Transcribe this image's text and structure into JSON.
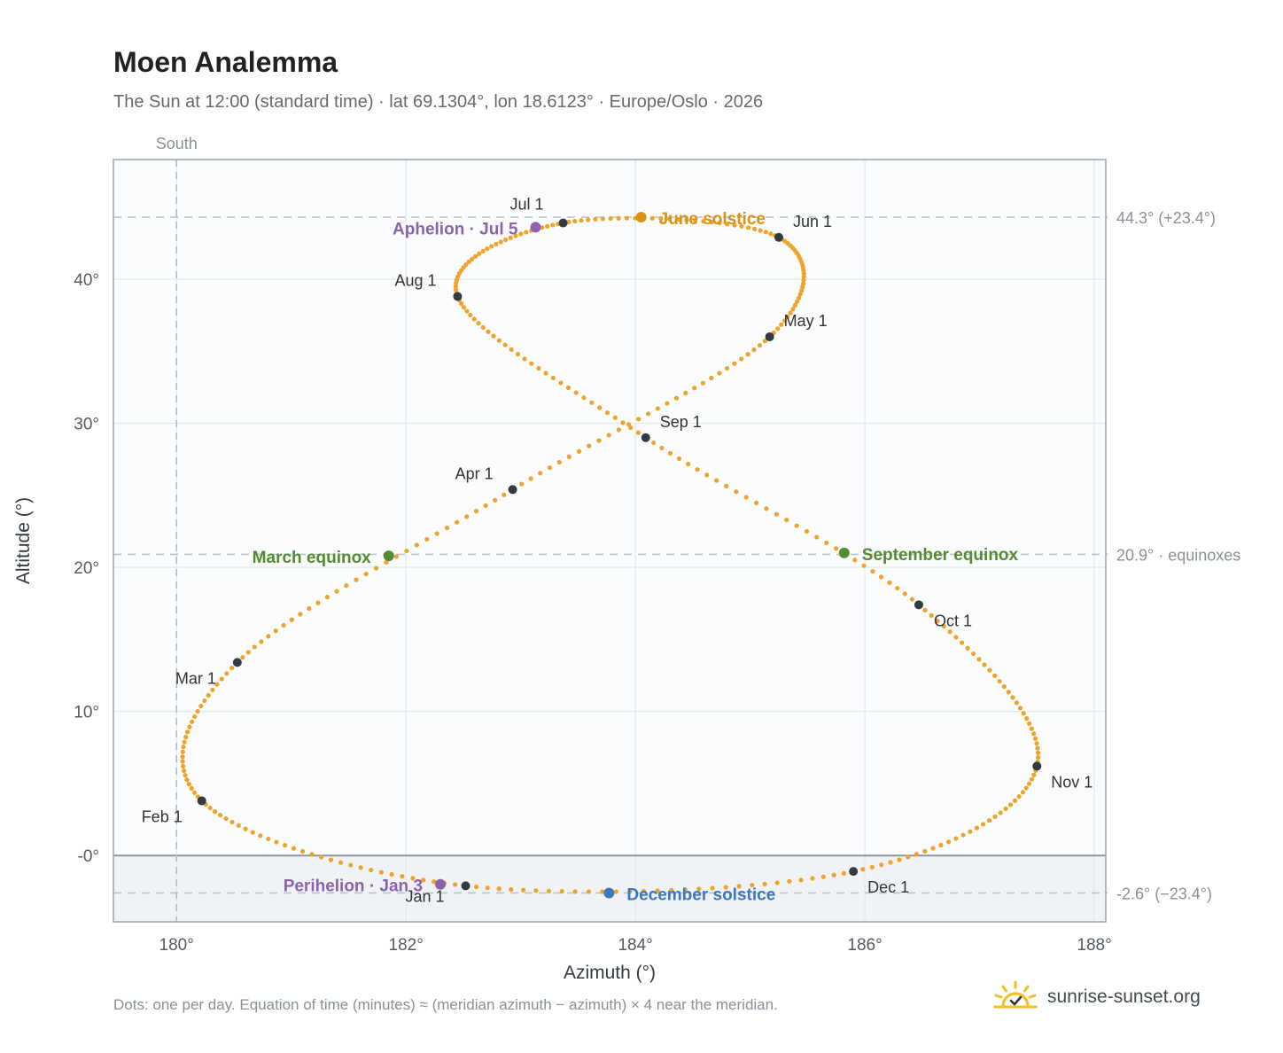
{
  "header": {
    "title": "Moen Analemma",
    "subtitle": "The Sun at 12:00 (standard time) · lat 69.1304°, lon 18.6123° · Europe/Oslo · 2026"
  },
  "footer": {
    "note": "Dots: one per day. Equation of time (minutes) ≈ (meridian azimuth − azimuth) × 4 near the meridian.",
    "brand": "sunrise-sunset.org"
  },
  "chart_data": {
    "type": "scatter",
    "xlabel": "Azimuth (°)",
    "ylabel": "Altitude (°)",
    "xlim": [
      179.45,
      188.1
    ],
    "ylim": [
      -4.6,
      48.3
    ],
    "x_ticks": [
      {
        "value": 180,
        "label": "180°"
      },
      {
        "value": 182,
        "label": "182°"
      },
      {
        "value": 184,
        "label": "184°"
      },
      {
        "value": 186,
        "label": "186°"
      },
      {
        "value": 188,
        "label": "188°"
      }
    ],
    "y_ticks": [
      {
        "value": 0,
        "label": "-0°"
      },
      {
        "value": 10,
        "label": "10°"
      },
      {
        "value": 20,
        "label": "20°"
      },
      {
        "value": 30,
        "label": "30°"
      },
      {
        "value": 40,
        "label": "40°"
      }
    ],
    "grid": true,
    "below_horizon_shaded": true,
    "meridian": {
      "x": 180,
      "label": "South"
    },
    "reference_lines": [
      {
        "y": 44.3,
        "label": "44.3° (+23.4°)"
      },
      {
        "y": 20.9,
        "label": "20.9° · equinoxes"
      },
      {
        "y": -2.6,
        "label": "-2.6° (−23.4°)"
      }
    ],
    "series_color": "#f0a32a",
    "anchors": [
      {
        "day": 0,
        "az": 182.52,
        "alt": -2.1
      },
      {
        "day": 31,
        "az": 180.22,
        "alt": 3.8
      },
      {
        "day": 59,
        "az": 180.53,
        "alt": 13.4
      },
      {
        "day": 90,
        "az": 182.93,
        "alt": 25.4
      },
      {
        "day": 120,
        "az": 185.17,
        "alt": 36.0
      },
      {
        "day": 151,
        "az": 185.25,
        "alt": 42.9
      },
      {
        "day": 181,
        "az": 183.37,
        "alt": 43.9
      },
      {
        "day": 212,
        "az": 182.45,
        "alt": 38.8
      },
      {
        "day": 243,
        "az": 184.09,
        "alt": 29.0
      },
      {
        "day": 273,
        "az": 186.47,
        "alt": 17.4
      },
      {
        "day": 304,
        "az": 187.5,
        "alt": 6.2
      },
      {
        "day": 334,
        "az": 185.9,
        "alt": -1.1
      },
      {
        "day": 365,
        "az": 182.52,
        "alt": -2.1
      }
    ],
    "month_markers": [
      {
        "label": "Jan 1",
        "az": 182.52,
        "alt": -2.1,
        "dx": -68,
        "dy": 18
      },
      {
        "label": "Feb 1",
        "az": 180.22,
        "alt": 3.8,
        "dx": -68,
        "dy": 24
      },
      {
        "label": "Mar 1",
        "az": 180.53,
        "alt": 13.4,
        "dx": -70,
        "dy": 24
      },
      {
        "label": "Apr 1",
        "az": 182.93,
        "alt": 25.4,
        "dx": -65,
        "dy": -12
      },
      {
        "label": "May 1",
        "az": 185.17,
        "alt": 36.0,
        "dx": 16,
        "dy": -12
      },
      {
        "label": "Jun 1",
        "az": 185.25,
        "alt": 42.9,
        "dx": 16,
        "dy": -12
      },
      {
        "label": "Jul 1",
        "az": 183.37,
        "alt": 43.9,
        "dx": -60,
        "dy": -15
      },
      {
        "label": "Aug 1",
        "az": 182.45,
        "alt": 38.8,
        "dx": -71,
        "dy": -12
      },
      {
        "label": "Sep 1",
        "az": 184.09,
        "alt": 29.0,
        "dx": 16,
        "dy": -12
      },
      {
        "label": "Oct 1",
        "az": 186.47,
        "alt": 17.4,
        "dx": 17,
        "dy": 24
      },
      {
        "label": "Nov 1",
        "az": 187.5,
        "alt": 6.2,
        "dx": 16,
        "dy": 24
      },
      {
        "label": "Dec 1",
        "az": 185.9,
        "alt": -1.1,
        "dx": 16,
        "dy": 24
      }
    ],
    "events": [
      {
        "label": "June solstice",
        "az": 184.05,
        "alt": 44.3,
        "color": "#d99410",
        "anchor": "start",
        "dx": 20,
        "dy": 8
      },
      {
        "label": "Aphelion · Jul 5",
        "az": 183.13,
        "alt": 43.6,
        "color": "#8c62b0",
        "anchor": "end",
        "dx": -20,
        "dy": 8
      },
      {
        "label": "March equinox",
        "az": 181.85,
        "alt": 20.8,
        "color": "#548b2e",
        "anchor": "end",
        "dx": -20,
        "dy": 8
      },
      {
        "label": "September equinox",
        "az": 185.82,
        "alt": 21.0,
        "color": "#548b2e",
        "anchor": "start",
        "dx": 20,
        "dy": 8
      },
      {
        "label": "Perihelion · Jan 3",
        "az": 182.3,
        "alt": -2.0,
        "color": "#8c62b0",
        "anchor": "end",
        "dx": -20,
        "dy": 8
      },
      {
        "label": "December solstice",
        "az": 183.77,
        "alt": -2.6,
        "color": "#3b78bd",
        "anchor": "start",
        "dx": 20,
        "dy": 8
      }
    ]
  }
}
